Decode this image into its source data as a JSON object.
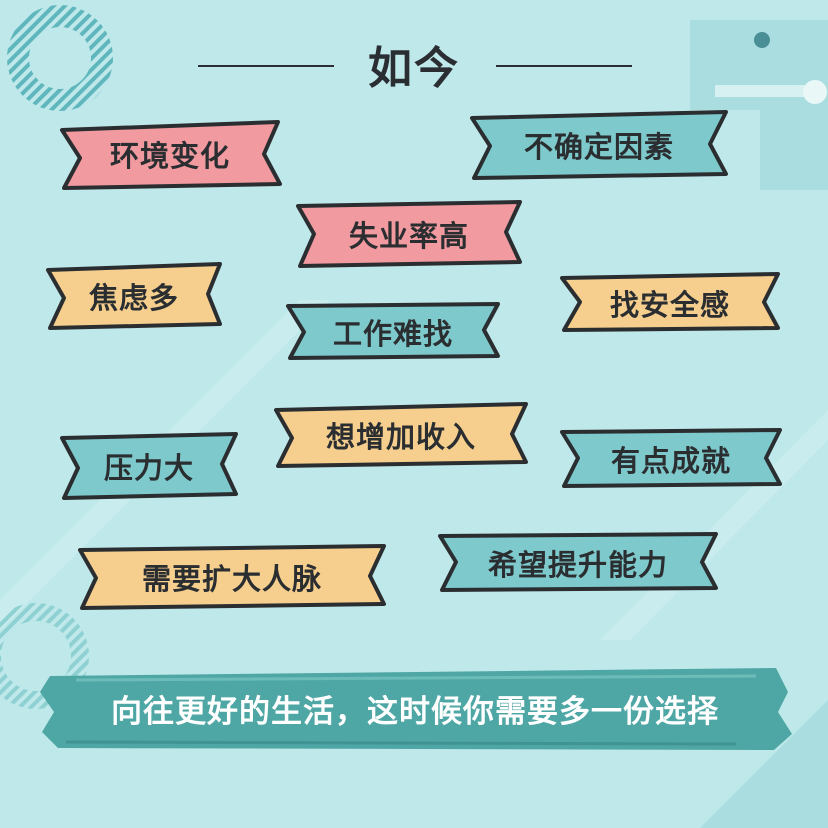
{
  "title": "如今",
  "tags": [
    {
      "id": "tag-1",
      "text": "环境变化",
      "color": "#f19aa0"
    },
    {
      "id": "tag-2",
      "text": "不确定因素",
      "color": "#7ec9cb"
    },
    {
      "id": "tag-3",
      "text": "失业率高",
      "color": "#f19aa0"
    },
    {
      "id": "tag-4",
      "text": "焦虑多",
      "color": "#f6cf8e"
    },
    {
      "id": "tag-5",
      "text": "找安全感",
      "color": "#f6cf8e"
    },
    {
      "id": "tag-6",
      "text": "工作难找",
      "color": "#7ec9cb"
    },
    {
      "id": "tag-7",
      "text": "想增加收入",
      "color": "#f6cf8e"
    },
    {
      "id": "tag-8",
      "text": "压力大",
      "color": "#7ec9cb"
    },
    {
      "id": "tag-9",
      "text": "有点成就",
      "color": "#7ec9cb"
    },
    {
      "id": "tag-10",
      "text": "需要扩大人脉",
      "color": "#f6cf8e"
    },
    {
      "id": "tag-11",
      "text": "希望提升能力",
      "color": "#7ec9cb"
    }
  ],
  "banner": {
    "text": "向往更好的生活，这时候你需要多一份选择",
    "color": "#4fa7a5"
  },
  "colors": {
    "background": "#bfe8ea",
    "outline": "#2b2e31",
    "text": "#2b2e31"
  }
}
